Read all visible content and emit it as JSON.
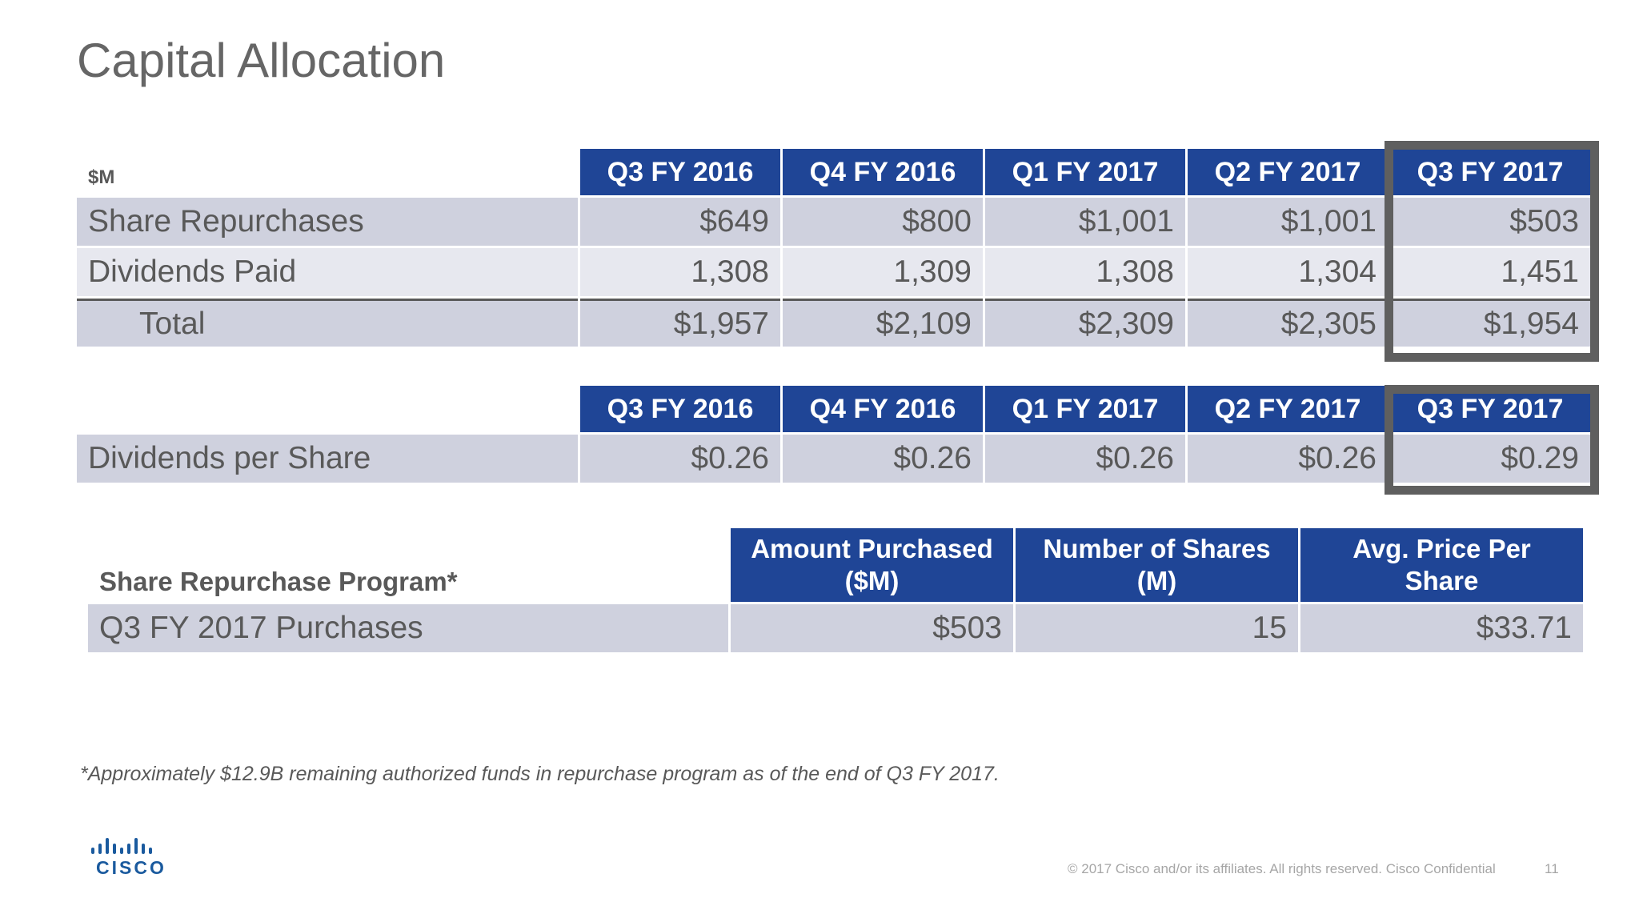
{
  "title": "Capital Allocation",
  "table1": {
    "unit_label": "$M",
    "headers": [
      "Q3 FY 2016",
      "Q4 FY 2016",
      "Q1 FY 2017",
      "Q2 FY 2017",
      "Q3 FY 2017"
    ],
    "rows": [
      {
        "label": "Share Repurchases",
        "values": [
          "$649",
          "$800",
          "$1,001",
          "$1,001",
          "$503"
        ]
      },
      {
        "label": "Dividends Paid",
        "values": [
          "1,308",
          "1,309",
          "1,308",
          "1,304",
          "1,451"
        ]
      },
      {
        "label": "Total",
        "values": [
          "$1,957",
          "$2,109",
          "$2,309",
          "$2,305",
          "$1,954"
        ]
      }
    ]
  },
  "table2": {
    "headers": [
      "Q3 FY 2016",
      "Q4 FY 2016",
      "Q1 FY 2017",
      "Q2 FY 2017",
      "Q3 FY 2017"
    ],
    "rows": [
      {
        "label": "Dividends per Share",
        "values": [
          "$0.26",
          "$0.26",
          "$0.26",
          "$0.26",
          "$0.29"
        ]
      }
    ]
  },
  "table3": {
    "label": "Share Repurchase Program*",
    "headers": [
      {
        "line1": "Amount Purchased",
        "line2": "($M)"
      },
      {
        "line1": "Number of Shares",
        "line2": "(M)"
      },
      {
        "line1": "Avg. Price Per",
        "line2": "Share"
      }
    ],
    "rows": [
      {
        "label": "Q3 FY 2017 Purchases",
        "values": [
          "$503",
          "15",
          "$33.71"
        ]
      }
    ]
  },
  "footnote": "*Approximately $12.9B remaining authorized funds in repurchase program as of the end of Q3 FY 2017.",
  "footer": {
    "logo_text": "CISCO",
    "copyright": "© 2017  Cisco and/or its affiliates. All rights reserved.   Cisco Confidential",
    "page_number": "11"
  },
  "colors": {
    "header_blue": "#1f4596",
    "row_dark": "#cfd1de",
    "row_light": "#e7e8ef",
    "highlight_border": "#5f5f5f",
    "logo_blue": "#1a5a9e"
  }
}
